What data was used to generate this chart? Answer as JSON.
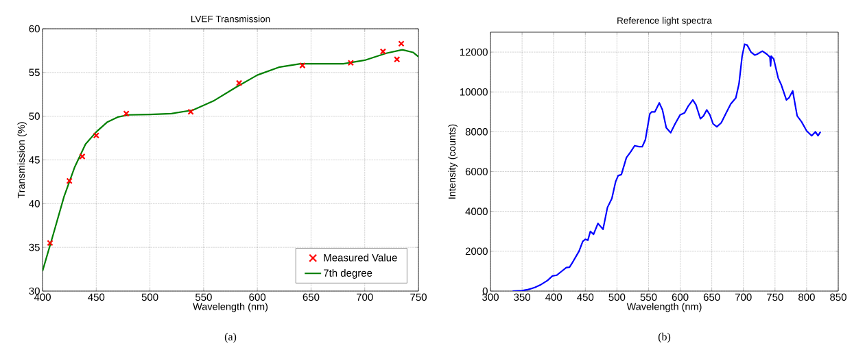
{
  "chart_data": [
    {
      "type": "line",
      "title": "LVEF Transmission",
      "xlabel": "Wavelength (nm)",
      "ylabel": "Transmission (%)",
      "xlim": [
        400,
        750
      ],
      "ylim": [
        30,
        60
      ],
      "xticks": [
        400,
        450,
        500,
        550,
        600,
        650,
        700,
        750
      ],
      "yticks": [
        30,
        35,
        40,
        45,
        50,
        55,
        60
      ],
      "grid": true,
      "legend": "bottom right",
      "annotations": [
        "(a)"
      ],
      "series": [
        {
          "name": "Measured Value",
          "type": "scatter",
          "marker": "cross",
          "color": "#ff0000",
          "x": [
            407,
            425,
            437,
            450,
            478,
            538,
            583,
            642,
            687,
            717,
            730,
            734
          ],
          "values": [
            35.5,
            42.6,
            45.4,
            47.8,
            50.3,
            50.5,
            53.8,
            55.8,
            56.1,
            57.4,
            56.5,
            58.3
          ]
        },
        {
          "name": "7th degree",
          "color": "#008000",
          "x": [
            400,
            410,
            420,
            430,
            440,
            450,
            460,
            470,
            480,
            500,
            520,
            540,
            560,
            580,
            600,
            620,
            640,
            660,
            680,
            700,
            720,
            735,
            745,
            750
          ],
          "values": [
            32.3,
            36.5,
            40.8,
            44.2,
            46.8,
            48.2,
            49.3,
            49.9,
            50.15,
            50.2,
            50.3,
            50.7,
            51.8,
            53.3,
            54.7,
            55.6,
            56.0,
            56.0,
            56.0,
            56.4,
            57.2,
            57.6,
            57.3,
            56.8
          ]
        }
      ]
    },
    {
      "type": "line",
      "title": "Reference light spectra",
      "xlabel": "Wavelength (nm)",
      "ylabel": "Intensity (counts)",
      "xlim": [
        300,
        850
      ],
      "ylim": [
        0,
        13000
      ],
      "xticks": [
        300,
        350,
        400,
        450,
        500,
        550,
        600,
        650,
        700,
        750,
        800,
        850
      ],
      "yticks": [
        0,
        2000,
        4000,
        6000,
        8000,
        10000,
        12000
      ],
      "grid": true,
      "annotations": [
        "(b)"
      ],
      "series": [
        {
          "color": "#0000ff",
          "x": [
            335,
            350,
            360,
            370,
            380,
            390,
            398,
            405,
            412,
            420,
            425,
            430,
            440,
            446,
            450,
            454,
            458,
            463,
            470,
            478,
            485,
            492,
            498,
            502,
            507,
            515,
            522,
            528,
            535,
            540,
            545,
            552,
            555,
            560,
            567,
            572,
            578,
            585,
            592,
            600,
            607,
            613,
            620,
            625,
            632,
            637,
            642,
            647,
            652,
            658,
            665,
            672,
            680,
            688,
            693,
            698,
            702,
            706,
            712,
            718,
            722,
            730,
            737,
            742,
            743,
            744,
            748,
            755,
            760,
            768,
            772,
            778,
            785,
            792,
            800,
            808,
            814,
            818,
            822
          ],
          "values": [
            0,
            20,
            80,
            180,
            330,
            530,
            760,
            800,
            980,
            1180,
            1200,
            1450,
            2000,
            2500,
            2600,
            2550,
            3000,
            2850,
            3400,
            3100,
            4200,
            4650,
            5500,
            5800,
            5850,
            6700,
            7000,
            7300,
            7250,
            7250,
            7600,
            8900,
            9000,
            9000,
            9450,
            9100,
            8200,
            7950,
            8400,
            8850,
            8950,
            9300,
            9600,
            9350,
            8650,
            8800,
            9100,
            8850,
            8400,
            8250,
            8450,
            8900,
            9400,
            9700,
            10400,
            11800,
            12400,
            12350,
            12000,
            11850,
            11900,
            12050,
            11900,
            11750,
            11300,
            11800,
            11650,
            10700,
            10350,
            9600,
            9700,
            10050,
            8800,
            8500,
            8050,
            7800,
            8000,
            7800,
            8000
          ]
        }
      ]
    }
  ]
}
